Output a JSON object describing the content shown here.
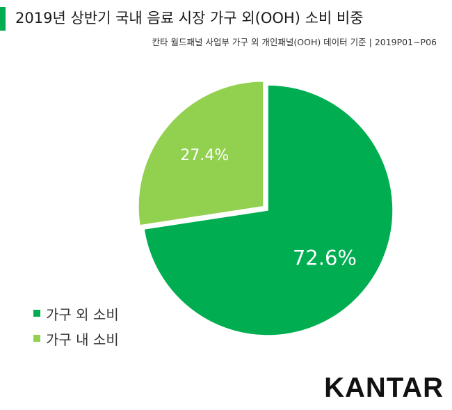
{
  "header": {
    "title": "2019년 상반기 국내 음료 시장 가구 외(OOH) 소비 비중",
    "subtitle": "칸타 월드패널 사업부 가구 외 개인패널(OOH) 데이터 기준 | 2019P01~P06",
    "accent_color": "#00ad50"
  },
  "chart_data": {
    "type": "pie",
    "title": "2019년 상반기 국내 음료 시장 가구 외(OOH) 소비 비중",
    "categories": [
      "가구 외 소비",
      "가구 내 소비"
    ],
    "values": [
      72.6,
      27.4
    ],
    "labels": [
      "72.6%",
      "27.4%"
    ],
    "colors": [
      "#00ad50",
      "#92d050"
    ],
    "exploded": "가구 내 소비",
    "start_angle": "12 o'clock, clockwise",
    "legend_position": "bottom-left"
  },
  "brand": {
    "logo_text": "KANTAR"
  }
}
